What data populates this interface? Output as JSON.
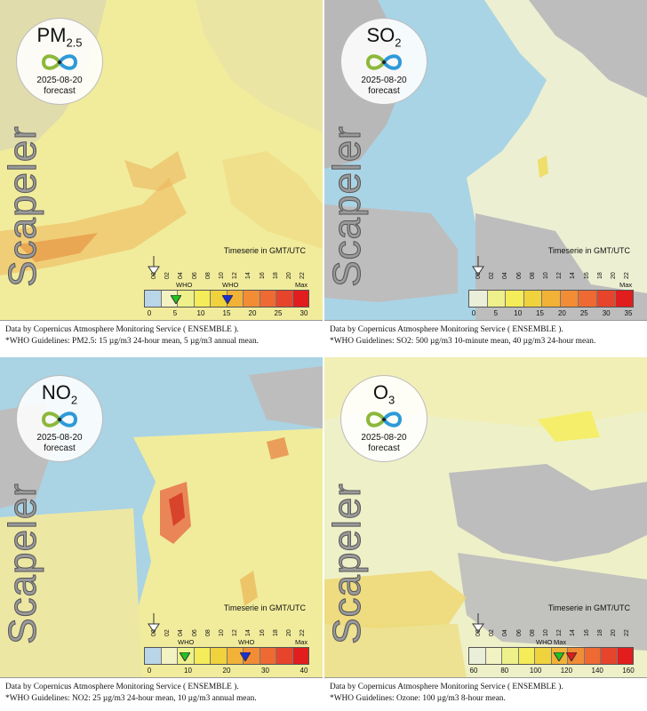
{
  "brand": "Scapeler",
  "timeserie_label": "Timeserie in GMT/UTC",
  "hours": [
    "00",
    "02",
    "04",
    "06",
    "08",
    "10",
    "12",
    "14",
    "16",
    "18",
    "20",
    "22"
  ],
  "max_label": "Max",
  "who_label": "WHO",
  "panels": [
    {
      "pollutant_main": "PM",
      "pollutant_sub": "2.5",
      "date": "2025-08-20",
      "forecast": "forecast",
      "scale_ticks": [
        "0",
        "5",
        "10",
        "15",
        "20",
        "25",
        "30"
      ],
      "colors": [
        "#b9d6e8",
        "#f2f2c2",
        "#eef08a",
        "#f4ec58",
        "#f0d23c",
        "#f2b238",
        "#f28c35",
        "#ee6a32",
        "#e6452b",
        "#e21d1d"
      ],
      "who_markers": [
        "green",
        "blue"
      ],
      "footer_line1": "Data by Copernicus Atmosphere Monitoring Service ( ENSEMBLE ).",
      "footer_line2": "*WHO Guidelines: PM2.5: 15 µg/m3 24-hour mean, 5 µg/m3 annual mean."
    },
    {
      "pollutant_main": "SO",
      "pollutant_sub": "2",
      "date": "2025-08-20",
      "forecast": "forecast",
      "scale_ticks": [
        "0",
        "5",
        "10",
        "15",
        "20",
        "25",
        "30",
        "35"
      ],
      "colors": [
        "#e9efd8",
        "#eef08a",
        "#f4ec58",
        "#f0d23c",
        "#f2b238",
        "#f28c35",
        "#ee6a32",
        "#e6452b",
        "#e21d1d"
      ],
      "who_markers": [],
      "footer_line1": "Data by Copernicus Atmosphere Monitoring Service ( ENSEMBLE ).",
      "footer_line2": "*WHO Guidelines: SO2: 500 µg/m3 10-minute mean, 40 µg/m3 24-hour mean."
    },
    {
      "pollutant_main": "NO",
      "pollutant_sub": "2",
      "date": "2025-08-20",
      "forecast": "forecast",
      "scale_ticks": [
        "0",
        "10",
        "20",
        "30",
        "40"
      ],
      "colors": [
        "#b9d6e8",
        "#f2f2c2",
        "#eef08a",
        "#f4ec58",
        "#f0d23c",
        "#f2b238",
        "#f28c35",
        "#ee6a32",
        "#e6452b",
        "#e21d1d"
      ],
      "who_markers": [
        "green",
        "blue"
      ],
      "footer_line1": "Data by Copernicus Atmosphere Monitoring Service ( ENSEMBLE ).",
      "footer_line2": "*WHO Guidelines: NO2: 25 µg/m3 24-hour mean, 10 µg/m3 annual mean."
    },
    {
      "pollutant_main": "O",
      "pollutant_sub": "3",
      "date": "2025-08-20",
      "forecast": "forecast",
      "scale_ticks": [
        "60",
        "80",
        "100",
        "120",
        "140",
        "160"
      ],
      "colors": [
        "#e9efd8",
        "#f2f2c2",
        "#eef08a",
        "#f4ec58",
        "#f0d23c",
        "#f2b238",
        "#f28c35",
        "#ee6a32",
        "#e6452b",
        "#e21d1d"
      ],
      "who_markers": [
        "green",
        "red"
      ],
      "footer_line1": "Data by Copernicus Atmosphere Monitoring Service ( ENSEMBLE ).",
      "footer_line2": "*WHO Guidelines: Ozone: 100 µg/m3 8-hour mean."
    }
  ]
}
